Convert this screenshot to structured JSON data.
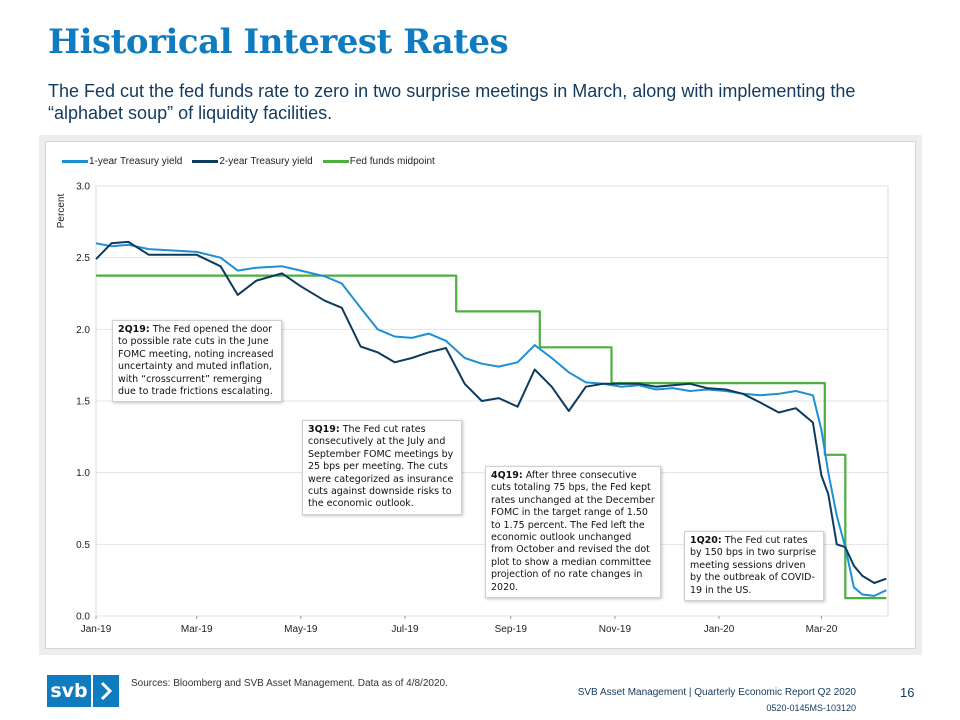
{
  "title": "Historical Interest Rates",
  "subtitle": "The Fed cut the fed funds rate to zero in two surprise meetings in March, along with implementing the “alphabet soup” of liquidity facilities.",
  "colors": {
    "title": "#0f7cc0",
    "one_year": "#1e8fd5",
    "two_year": "#0d3b5e",
    "fed_funds": "#4caf3e"
  },
  "chart_data": {
    "type": "line",
    "ylabel": "Percent",
    "ylim": [
      0,
      3.0
    ],
    "yticks": [
      "0.0",
      "0.5",
      "1.0",
      "1.5",
      "2.0",
      "2.5",
      "3.0"
    ],
    "xticks": [
      "Jan-19",
      "Mar-19",
      "May-19",
      "Jul-19",
      "Sep-19",
      "Nov-19",
      "Jan-20",
      "Mar-20"
    ],
    "xtick_dates": [
      "2019-01-01",
      "2019-03-01",
      "2019-05-01",
      "2019-07-01",
      "2019-09-01",
      "2019-11-01",
      "2020-01-01",
      "2020-03-01"
    ],
    "grid": true,
    "legend_position": "top-left",
    "series": [
      {
        "name": "1-year Treasury yield",
        "color": "#1e8fd5",
        "x": [
          "2019-01-01",
          "2019-01-10",
          "2019-01-20",
          "2019-02-01",
          "2019-02-15",
          "2019-03-01",
          "2019-03-15",
          "2019-03-25",
          "2019-04-05",
          "2019-04-20",
          "2019-05-01",
          "2019-05-15",
          "2019-05-25",
          "2019-06-05",
          "2019-06-15",
          "2019-06-25",
          "2019-07-05",
          "2019-07-15",
          "2019-07-25",
          "2019-08-05",
          "2019-08-15",
          "2019-08-25",
          "2019-09-05",
          "2019-09-15",
          "2019-09-25",
          "2019-10-05",
          "2019-10-15",
          "2019-10-25",
          "2019-11-05",
          "2019-11-15",
          "2019-11-25",
          "2019-12-05",
          "2019-12-15",
          "2019-12-25",
          "2020-01-05",
          "2020-01-15",
          "2020-01-25",
          "2020-02-05",
          "2020-02-15",
          "2020-02-25",
          "2020-03-01",
          "2020-03-05",
          "2020-03-10",
          "2020-03-15",
          "2020-03-20",
          "2020-03-25",
          "2020-04-01",
          "2020-04-08"
        ],
        "values": [
          2.6,
          2.58,
          2.59,
          2.56,
          2.55,
          2.54,
          2.5,
          2.41,
          2.43,
          2.44,
          2.41,
          2.37,
          2.32,
          2.15,
          2.0,
          1.95,
          1.94,
          1.97,
          1.92,
          1.8,
          1.76,
          1.74,
          1.77,
          1.89,
          1.8,
          1.7,
          1.63,
          1.62,
          1.6,
          1.61,
          1.58,
          1.59,
          1.57,
          1.58,
          1.57,
          1.55,
          1.54,
          1.55,
          1.57,
          1.54,
          1.3,
          1.0,
          0.7,
          0.48,
          0.2,
          0.15,
          0.14,
          0.18
        ]
      },
      {
        "name": "2-year Treasury yield",
        "color": "#0d3b5e",
        "x": [
          "2019-01-01",
          "2019-01-10",
          "2019-01-20",
          "2019-02-01",
          "2019-02-15",
          "2019-03-01",
          "2019-03-15",
          "2019-03-25",
          "2019-04-05",
          "2019-04-20",
          "2019-05-01",
          "2019-05-15",
          "2019-05-25",
          "2019-06-05",
          "2019-06-15",
          "2019-06-25",
          "2019-07-05",
          "2019-07-15",
          "2019-07-25",
          "2019-08-05",
          "2019-08-15",
          "2019-08-25",
          "2019-09-05",
          "2019-09-15",
          "2019-09-25",
          "2019-10-05",
          "2019-10-15",
          "2019-10-25",
          "2019-11-05",
          "2019-11-15",
          "2019-11-25",
          "2019-12-05",
          "2019-12-15",
          "2019-12-25",
          "2020-01-05",
          "2020-01-15",
          "2020-01-25",
          "2020-02-05",
          "2020-02-15",
          "2020-02-25",
          "2020-03-01",
          "2020-03-05",
          "2020-03-10",
          "2020-03-15",
          "2020-03-20",
          "2020-03-25",
          "2020-04-01",
          "2020-04-08"
        ],
        "values": [
          2.49,
          2.6,
          2.61,
          2.52,
          2.52,
          2.52,
          2.44,
          2.24,
          2.34,
          2.39,
          2.3,
          2.2,
          2.15,
          1.88,
          1.84,
          1.77,
          1.8,
          1.84,
          1.87,
          1.62,
          1.5,
          1.52,
          1.46,
          1.72,
          1.6,
          1.43,
          1.6,
          1.62,
          1.62,
          1.62,
          1.6,
          1.61,
          1.62,
          1.59,
          1.58,
          1.55,
          1.49,
          1.42,
          1.45,
          1.35,
          0.98,
          0.85,
          0.5,
          0.48,
          0.35,
          0.28,
          0.23,
          0.26
        ]
      },
      {
        "name": "Fed funds midpoint",
        "color": "#4caf3e",
        "step": true,
        "x": [
          "2019-01-01",
          "2019-07-31",
          "2019-09-18",
          "2019-10-30",
          "2020-03-03",
          "2020-03-15",
          "2020-04-08"
        ],
        "values": [
          2.375,
          2.125,
          1.875,
          1.625,
          1.125,
          0.125,
          0.125
        ]
      }
    ],
    "annotations": [
      {
        "label": "2Q19:",
        "text": "The Fed opened the door to possible rate cuts in the June FOMC meeting, noting increased uncertainty and muted inflation, with “crosscurrent” remerging due to trade frictions escalating."
      },
      {
        "label": "3Q19:",
        "text": "The Fed cut rates consecutively at the July and September FOMC meetings by 25 bps per meeting. The cuts were categorized as insurance cuts against downside risks to the economic outlook."
      },
      {
        "label": "4Q19:",
        "text": "After three consecutive cuts totaling 75 bps, the Fed kept rates unchanged at the December FOMC in the target range of 1.50 to 1.75 percent. The Fed left the economic outlook unchanged from October and revised the dot plot to show a median committee projection of no rate changes in 2020."
      },
      {
        "label": "1Q20:",
        "text": "The Fed cut rates by 150 bps in two surprise meeting sessions driven by the outbreak of COVID-19 in the US."
      }
    ]
  },
  "footer": {
    "logo_text": "svb",
    "sources": "Sources: Bloomberg and SVB Asset Management. Data as of 4/8/2020.",
    "report": "SVB Asset Management | Quarterly Economic Report Q2 2020",
    "page_number": "16",
    "doc_code": "0520-0145MS-103120"
  }
}
